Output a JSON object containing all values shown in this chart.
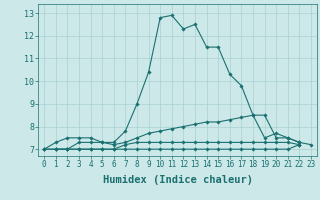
{
  "xlabel": "Humidex (Indice chaleur)",
  "xlim": [
    -0.5,
    23.5
  ],
  "ylim": [
    6.7,
    13.4
  ],
  "background_color": "#cce8e8",
  "grid_color": "#aad0d0",
  "line_color": "#1a7070",
  "series": [
    [
      7.0,
      7.3,
      7.5,
      7.5,
      7.5,
      7.3,
      7.3,
      7.8,
      9.0,
      10.4,
      12.8,
      12.9,
      12.3,
      12.5,
      11.5,
      11.5,
      10.3,
      9.8,
      8.5,
      7.5,
      7.7,
      7.5,
      7.3
    ],
    [
      7.0,
      7.0,
      7.3,
      7.3,
      7.3,
      7.2,
      7.3,
      7.5,
      7.7,
      7.8,
      7.9,
      8.0,
      8.1,
      8.2,
      8.2,
      8.3,
      8.4,
      8.5,
      8.5,
      7.5,
      7.5,
      7.3,
      7.2
    ],
    [
      7.0,
      7.0,
      7.0,
      7.0,
      7.0,
      7.0,
      7.0,
      7.0,
      7.0,
      7.0,
      7.0,
      7.0,
      7.0,
      7.0,
      7.0,
      7.0,
      7.0,
      7.0,
      7.0,
      7.0,
      7.0,
      7.0,
      7.2
    ],
    [
      7.0,
      7.0,
      7.0,
      7.0,
      7.0,
      7.0,
      7.0,
      7.2,
      7.3,
      7.3,
      7.3,
      7.3,
      7.3,
      7.3,
      7.3,
      7.3,
      7.3,
      7.3,
      7.3,
      7.3,
      7.3,
      7.3,
      7.2
    ]
  ],
  "series_x": [
    [
      0,
      1,
      2,
      3,
      4,
      5,
      6,
      7,
      8,
      9,
      10,
      11,
      12,
      13,
      14,
      15,
      16,
      17,
      18,
      19,
      20,
      21,
      22
    ],
    [
      1,
      2,
      3,
      4,
      5,
      6,
      7,
      8,
      9,
      10,
      11,
      12,
      13,
      14,
      15,
      16,
      17,
      18,
      19,
      20,
      21,
      22,
      23
    ],
    [
      0,
      1,
      2,
      3,
      4,
      5,
      6,
      7,
      8,
      9,
      10,
      11,
      12,
      13,
      14,
      15,
      16,
      17,
      18,
      19,
      20,
      21,
      22
    ],
    [
      0,
      1,
      2,
      3,
      4,
      5,
      6,
      7,
      8,
      9,
      10,
      11,
      12,
      13,
      14,
      15,
      16,
      17,
      18,
      19,
      20,
      21,
      22
    ]
  ],
  "xtick_labels": [
    "0",
    "1",
    "2",
    "3",
    "4",
    "5",
    "6",
    "7",
    "8",
    "9",
    "10",
    "11",
    "12",
    "13",
    "14",
    "15",
    "16",
    "17",
    "18",
    "19",
    "20",
    "21",
    "22",
    "23"
  ],
  "xtick_pos": [
    0,
    1,
    2,
    3,
    4,
    5,
    6,
    7,
    8,
    9,
    10,
    11,
    12,
    13,
    14,
    15,
    16,
    17,
    18,
    19,
    20,
    21,
    22,
    23
  ],
  "ytick_labels": [
    "7",
    "8",
    "9",
    "10",
    "11",
    "12",
    "13"
  ],
  "yticks": [
    7,
    8,
    9,
    10,
    11,
    12,
    13
  ],
  "xtick_fontsize": 5.5,
  "ytick_fontsize": 6.0,
  "xlabel_fontsize": 7.5,
  "marker": "D",
  "marker_size": 1.8,
  "line_width": 0.8
}
